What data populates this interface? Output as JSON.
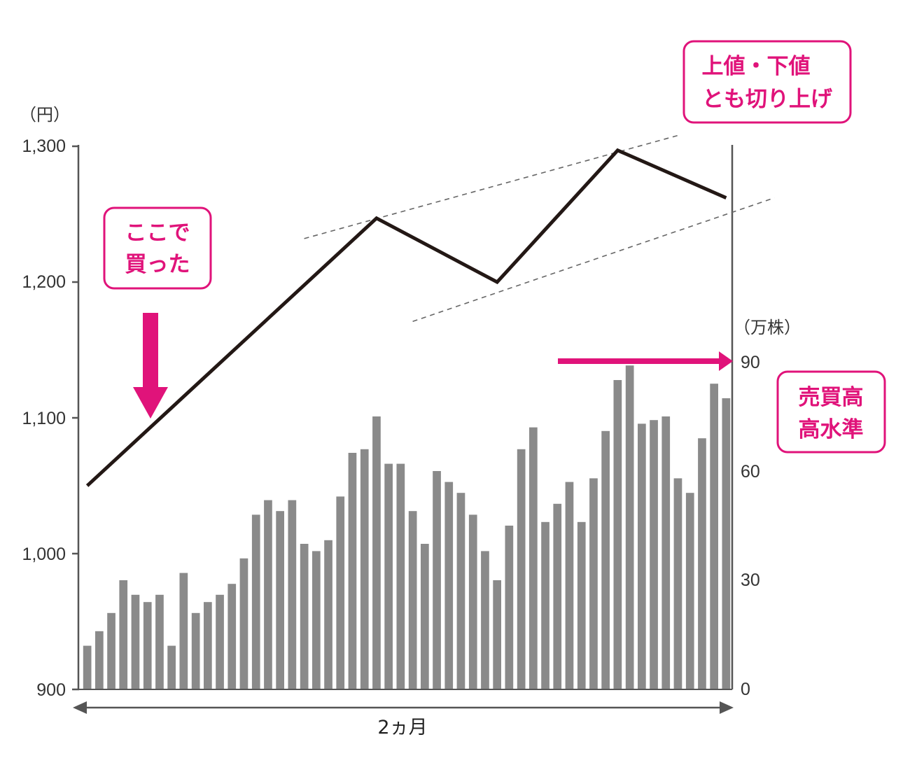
{
  "chart_data": {
    "type": "bar+line",
    "left_axis": {
      "unit": "（円）",
      "ticks": [
        "1,300",
        "1,200",
        "1,100",
        "1,000",
        "900"
      ],
      "ylim": [
        900,
        1300
      ]
    },
    "right_axis": {
      "unit": "（万株）",
      "ticks": [
        "90",
        "60",
        "30",
        "0"
      ],
      "ylim": [
        0,
        90
      ]
    },
    "price_line": {
      "points": [
        {
          "x": 0,
          "y": 1050
        },
        {
          "x": 24,
          "y": 1247
        },
        {
          "x": 34,
          "y": 1200
        },
        {
          "x": 44,
          "y": 1297
        },
        {
          "x": 53,
          "y": 1262
        }
      ]
    },
    "trend_lines": [
      {
        "from": {
          "x": 18,
          "y": 1232
        },
        "to": {
          "x": 49,
          "y": 1308
        }
      },
      {
        "from": {
          "x": 27,
          "y": 1171
        },
        "to": {
          "x": 57,
          "y": 1262
        }
      }
    ],
    "volume": {
      "values": [
        12,
        16,
        21,
        30,
        26,
        24,
        26,
        12,
        32,
        21,
        24,
        26,
        29,
        36,
        48,
        52,
        49,
        52,
        40,
        38,
        41,
        53,
        65,
        66,
        75,
        62,
        62,
        49,
        40,
        60,
        57,
        54,
        48,
        38,
        30,
        45,
        66,
        72,
        46,
        51,
        57,
        46,
        58,
        71,
        85,
        89,
        73,
        74,
        75,
        58,
        54,
        69,
        84,
        80
      ]
    },
    "period_label": "2ヵ月",
    "colors": {
      "line": "#231815",
      "bars": "#8a8a8a",
      "accent": "#e0137a",
      "axis": "#555555",
      "dashed": "#666666"
    }
  },
  "annotations": {
    "bought_here": [
      "ここで",
      "買った"
    ],
    "highs_lows_rising": [
      "上値・下値",
      "とも切り上げ"
    ],
    "volume_high": [
      "売買高",
      "高水準"
    ]
  }
}
